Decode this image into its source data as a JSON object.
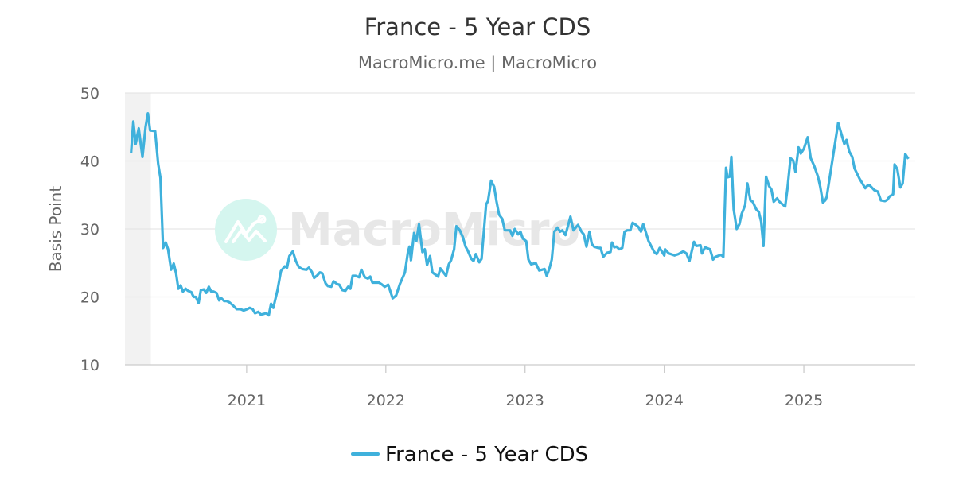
{
  "chart_data": {
    "type": "line",
    "title": "France - 5 Year CDS",
    "subtitle": "MacroMicro.me | MacroMicro",
    "xlabel": "",
    "ylabel": "Basis Point",
    "ylim": [
      10,
      50
    ],
    "yticks": [
      "10",
      "20",
      "30",
      "40",
      "50"
    ],
    "xlim": [
      "2020-02-17",
      "2025-10-20"
    ],
    "xticks": [
      "2021",
      "2022",
      "2023",
      "2024",
      "2025"
    ],
    "grid": true,
    "legend_position": "bottom",
    "shaded_period": [
      "2020-02-17",
      "2020-04-25"
    ],
    "watermark": "MacroMicro",
    "colors": {
      "line": "#3fb1dc",
      "grid": "#e6e6e6",
      "shade": "#f2f2f2",
      "watermark_circle": "#d5f6ef",
      "watermark_text": "#e7e7e7"
    },
    "series": [
      {
        "name": "France - 5 Year CDS",
        "points": [
          [
            "2020-03-04",
            41.2
          ],
          [
            "2020-03-10",
            45.8
          ],
          [
            "2020-03-16",
            42.5
          ],
          [
            "2020-03-24",
            44.8
          ],
          [
            "2020-04-03",
            40.6
          ],
          [
            "2020-04-11",
            45.0
          ],
          [
            "2020-04-17",
            47.0
          ],
          [
            "2020-04-23",
            44.5
          ],
          [
            "2020-05-06",
            44.4
          ],
          [
            "2020-05-14",
            39.6
          ],
          [
            "2020-05-20",
            37.5
          ],
          [
            "2020-05-27",
            27.2
          ],
          [
            "2020-06-03",
            28.0
          ],
          [
            "2020-06-09",
            27.0
          ],
          [
            "2020-06-17",
            24.0
          ],
          [
            "2020-06-24",
            24.9
          ],
          [
            "2020-06-30",
            23.5
          ],
          [
            "2020-07-06",
            21.2
          ],
          [
            "2020-07-12",
            21.7
          ],
          [
            "2020-07-18",
            20.8
          ],
          [
            "2020-07-25",
            21.2
          ],
          [
            "2020-07-31",
            20.9
          ],
          [
            "2020-08-09",
            20.7
          ],
          [
            "2020-08-15",
            20.0
          ],
          [
            "2020-08-21",
            20.0
          ],
          [
            "2020-08-28",
            19.1
          ],
          [
            "2020-09-03",
            21.0
          ],
          [
            "2020-09-11",
            21.1
          ],
          [
            "2020-09-17",
            20.6
          ],
          [
            "2020-09-24",
            21.5
          ],
          [
            "2020-09-30",
            20.8
          ],
          [
            "2020-10-06",
            20.8
          ],
          [
            "2020-10-14",
            20.6
          ],
          [
            "2020-10-21",
            19.5
          ],
          [
            "2020-10-27",
            19.8
          ],
          [
            "2020-11-03",
            19.4
          ],
          [
            "2020-11-09",
            19.4
          ],
          [
            "2020-11-17",
            19.2
          ],
          [
            "2020-11-27",
            18.7
          ],
          [
            "2020-12-06",
            18.2
          ],
          [
            "2020-12-16",
            18.2
          ],
          [
            "2020-12-24",
            18.0
          ],
          [
            "2021-01-03",
            18.2
          ],
          [
            "2021-01-09",
            18.4
          ],
          [
            "2021-01-17",
            18.2
          ],
          [
            "2021-01-23",
            17.6
          ],
          [
            "2021-02-01",
            17.8
          ],
          [
            "2021-02-07",
            17.4
          ],
          [
            "2021-02-15",
            17.5
          ],
          [
            "2021-02-21",
            17.6
          ],
          [
            "2021-02-28",
            17.3
          ],
          [
            "2021-03-06",
            19.0
          ],
          [
            "2021-03-12",
            18.4
          ],
          [
            "2021-03-23",
            21.0
          ],
          [
            "2021-04-01",
            23.8
          ],
          [
            "2021-04-11",
            24.5
          ],
          [
            "2021-04-17",
            24.3
          ],
          [
            "2021-04-23",
            26.0
          ],
          [
            "2021-05-02",
            26.7
          ],
          [
            "2021-05-10",
            25.3
          ],
          [
            "2021-05-18",
            24.4
          ],
          [
            "2021-05-27",
            24.1
          ],
          [
            "2021-06-07",
            24.0
          ],
          [
            "2021-06-13",
            24.3
          ],
          [
            "2021-06-21",
            23.7
          ],
          [
            "2021-06-27",
            22.8
          ],
          [
            "2021-07-06",
            23.2
          ],
          [
            "2021-07-12",
            23.6
          ],
          [
            "2021-07-18",
            23.5
          ],
          [
            "2021-07-27",
            22.0
          ],
          [
            "2021-08-02",
            21.6
          ],
          [
            "2021-08-11",
            21.5
          ],
          [
            "2021-08-17",
            22.3
          ],
          [
            "2021-08-26",
            21.9
          ],
          [
            "2021-09-01",
            21.8
          ],
          [
            "2021-09-09",
            21.0
          ],
          [
            "2021-09-17",
            20.9
          ],
          [
            "2021-09-24",
            21.5
          ],
          [
            "2021-09-30",
            21.2
          ],
          [
            "2021-10-06",
            23.1
          ],
          [
            "2021-10-14",
            23.1
          ],
          [
            "2021-10-23",
            22.9
          ],
          [
            "2021-10-29",
            24.0
          ],
          [
            "2021-11-07",
            22.9
          ],
          [
            "2021-11-15",
            22.7
          ],
          [
            "2021-11-21",
            23.0
          ],
          [
            "2021-11-27",
            22.1
          ],
          [
            "2021-12-06",
            22.1
          ],
          [
            "2021-12-14",
            22.1
          ],
          [
            "2021-12-20",
            21.9
          ],
          [
            "2021-12-29",
            21.5
          ],
          [
            "2022-01-07",
            21.8
          ],
          [
            "2022-01-13",
            20.8
          ],
          [
            "2022-01-19",
            19.8
          ],
          [
            "2022-01-28",
            20.2
          ],
          [
            "2022-02-07",
            21.9
          ],
          [
            "2022-02-20",
            23.6
          ],
          [
            "2022-02-28",
            26.6
          ],
          [
            "2022-03-04",
            27.4
          ],
          [
            "2022-03-08",
            25.4
          ],
          [
            "2022-03-16",
            29.4
          ],
          [
            "2022-03-22",
            28.2
          ],
          [
            "2022-03-29",
            30.7
          ],
          [
            "2022-04-07",
            26.6
          ],
          [
            "2022-04-13",
            27.0
          ],
          [
            "2022-04-19",
            24.7
          ],
          [
            "2022-04-27",
            26.0
          ],
          [
            "2022-05-03",
            23.6
          ],
          [
            "2022-05-18",
            23.0
          ],
          [
            "2022-05-24",
            24.2
          ],
          [
            "2022-06-08",
            23.1
          ],
          [
            "2022-06-15",
            24.8
          ],
          [
            "2022-06-21",
            25.4
          ],
          [
            "2022-06-29",
            27.0
          ],
          [
            "2022-07-05",
            30.4
          ],
          [
            "2022-07-14",
            29.8
          ],
          [
            "2022-07-22",
            28.8
          ],
          [
            "2022-07-29",
            27.4
          ],
          [
            "2022-08-04",
            26.8
          ],
          [
            "2022-08-13",
            25.6
          ],
          [
            "2022-08-19",
            25.3
          ],
          [
            "2022-08-25",
            26.3
          ],
          [
            "2022-09-03",
            25.1
          ],
          [
            "2022-09-09",
            25.6
          ],
          [
            "2022-09-21",
            33.6
          ],
          [
            "2022-09-26",
            34.1
          ],
          [
            "2022-10-04",
            37.1
          ],
          [
            "2022-10-12",
            36.2
          ],
          [
            "2022-10-18",
            34.1
          ],
          [
            "2022-10-25",
            32.1
          ],
          [
            "2022-11-02",
            31.5
          ],
          [
            "2022-11-09",
            29.8
          ],
          [
            "2022-11-23",
            29.8
          ],
          [
            "2022-11-29",
            29.0
          ],
          [
            "2022-12-05",
            30.0
          ],
          [
            "2022-12-14",
            29.2
          ],
          [
            "2022-12-20",
            29.6
          ],
          [
            "2022-12-26",
            28.6
          ],
          [
            "2023-01-04",
            28.2
          ],
          [
            "2023-01-10",
            25.5
          ],
          [
            "2023-01-17",
            24.8
          ],
          [
            "2023-01-29",
            25.0
          ],
          [
            "2023-02-07",
            23.9
          ],
          [
            "2023-02-21",
            24.1
          ],
          [
            "2023-02-27",
            23.1
          ],
          [
            "2023-03-06",
            24.2
          ],
          [
            "2023-03-12",
            25.5
          ],
          [
            "2023-03-19",
            29.6
          ],
          [
            "2023-03-27",
            30.2
          ],
          [
            "2023-04-03",
            29.6
          ],
          [
            "2023-04-09",
            29.8
          ],
          [
            "2023-04-17",
            29.1
          ],
          [
            "2023-04-30",
            31.8
          ],
          [
            "2023-05-08",
            29.8
          ],
          [
            "2023-05-20",
            30.6
          ],
          [
            "2023-05-29",
            29.6
          ],
          [
            "2023-06-04",
            29.2
          ],
          [
            "2023-06-11",
            27.4
          ],
          [
            "2023-06-19",
            29.6
          ],
          [
            "2023-06-25",
            27.8
          ],
          [
            "2023-07-01",
            27.4
          ],
          [
            "2023-07-12",
            27.2
          ],
          [
            "2023-07-18",
            27.2
          ],
          [
            "2023-07-25",
            25.9
          ],
          [
            "2023-08-04",
            26.5
          ],
          [
            "2023-08-13",
            26.6
          ],
          [
            "2023-08-17",
            28.0
          ],
          [
            "2023-08-23",
            27.3
          ],
          [
            "2023-08-29",
            27.4
          ],
          [
            "2023-09-05",
            27.0
          ],
          [
            "2023-09-13",
            27.2
          ],
          [
            "2023-09-19",
            29.6
          ],
          [
            "2023-09-26",
            29.8
          ],
          [
            "2023-10-04",
            29.8
          ],
          [
            "2023-10-10",
            30.9
          ],
          [
            "2023-10-16",
            30.7
          ],
          [
            "2023-10-25",
            30.3
          ],
          [
            "2023-11-01",
            29.6
          ],
          [
            "2023-11-07",
            30.7
          ],
          [
            "2023-11-21",
            28.2
          ],
          [
            "2023-12-06",
            26.6
          ],
          [
            "2023-12-12",
            26.3
          ],
          [
            "2023-12-20",
            27.2
          ],
          [
            "2024-01-01",
            26.1
          ],
          [
            "2024-01-03",
            27.0
          ],
          [
            "2024-01-13",
            26.4
          ],
          [
            "2024-01-28",
            26.1
          ],
          [
            "2024-02-07",
            26.3
          ],
          [
            "2024-02-20",
            26.7
          ],
          [
            "2024-02-28",
            26.4
          ],
          [
            "2024-03-07",
            25.3
          ],
          [
            "2024-03-19",
            28.1
          ],
          [
            "2024-03-25",
            27.5
          ],
          [
            "2024-04-05",
            27.6
          ],
          [
            "2024-04-09",
            26.4
          ],
          [
            "2024-04-17",
            27.3
          ],
          [
            "2024-04-30",
            27.0
          ],
          [
            "2024-05-08",
            25.5
          ],
          [
            "2024-05-14",
            25.9
          ],
          [
            "2024-05-29",
            26.2
          ],
          [
            "2024-06-04",
            25.9
          ],
          [
            "2024-06-11",
            39.0
          ],
          [
            "2024-06-15",
            37.6
          ],
          [
            "2024-06-21",
            37.7
          ],
          [
            "2024-06-25",
            40.6
          ],
          [
            "2024-07-01",
            32.9
          ],
          [
            "2024-07-09",
            30.0
          ],
          [
            "2024-07-16",
            30.7
          ],
          [
            "2024-07-22",
            32.2
          ],
          [
            "2024-07-31",
            33.5
          ],
          [
            "2024-08-06",
            36.7
          ],
          [
            "2024-08-14",
            34.2
          ],
          [
            "2024-08-20",
            34.0
          ],
          [
            "2024-08-29",
            32.9
          ],
          [
            "2024-09-05",
            32.5
          ],
          [
            "2024-09-11",
            31.1
          ],
          [
            "2024-09-17",
            27.5
          ],
          [
            "2024-09-24",
            37.7
          ],
          [
            "2024-10-02",
            36.3
          ],
          [
            "2024-10-08",
            35.8
          ],
          [
            "2024-10-14",
            34.0
          ],
          [
            "2024-10-23",
            34.5
          ],
          [
            "2024-10-29",
            34.0
          ],
          [
            "2024-11-13",
            33.3
          ],
          [
            "2024-11-19",
            36.0
          ],
          [
            "2024-11-27",
            40.4
          ],
          [
            "2024-12-04",
            40.1
          ],
          [
            "2024-12-10",
            38.4
          ],
          [
            "2024-12-18",
            42.0
          ],
          [
            "2024-12-24",
            41.1
          ],
          [
            "2025-01-01",
            41.8
          ],
          [
            "2025-01-11",
            43.5
          ],
          [
            "2025-01-19",
            40.4
          ],
          [
            "2025-01-28",
            39.3
          ],
          [
            "2025-02-07",
            37.7
          ],
          [
            "2025-02-13",
            36.2
          ],
          [
            "2025-02-20",
            33.9
          ],
          [
            "2025-02-26",
            34.2
          ],
          [
            "2025-03-02",
            34.7
          ],
          [
            "2025-04-01",
            45.6
          ],
          [
            "2025-04-17",
            42.5
          ],
          [
            "2025-04-23",
            43.1
          ],
          [
            "2025-04-30",
            41.4
          ],
          [
            "2025-05-08",
            40.6
          ],
          [
            "2025-05-14",
            38.9
          ],
          [
            "2025-05-27",
            37.4
          ],
          [
            "2025-06-11",
            36.0
          ],
          [
            "2025-06-17",
            36.4
          ],
          [
            "2025-06-23",
            36.4
          ],
          [
            "2025-07-05",
            35.7
          ],
          [
            "2025-07-14",
            35.5
          ],
          [
            "2025-07-22",
            34.2
          ],
          [
            "2025-08-02",
            34.1
          ],
          [
            "2025-08-08",
            34.3
          ],
          [
            "2025-08-14",
            34.8
          ],
          [
            "2025-08-23",
            35.1
          ],
          [
            "2025-08-27",
            39.5
          ],
          [
            "2025-09-03",
            38.8
          ],
          [
            "2025-09-11",
            36.1
          ],
          [
            "2025-09-17",
            36.7
          ],
          [
            "2025-09-24",
            41.0
          ],
          [
            "2025-10-02",
            40.3
          ]
        ]
      }
    ]
  }
}
